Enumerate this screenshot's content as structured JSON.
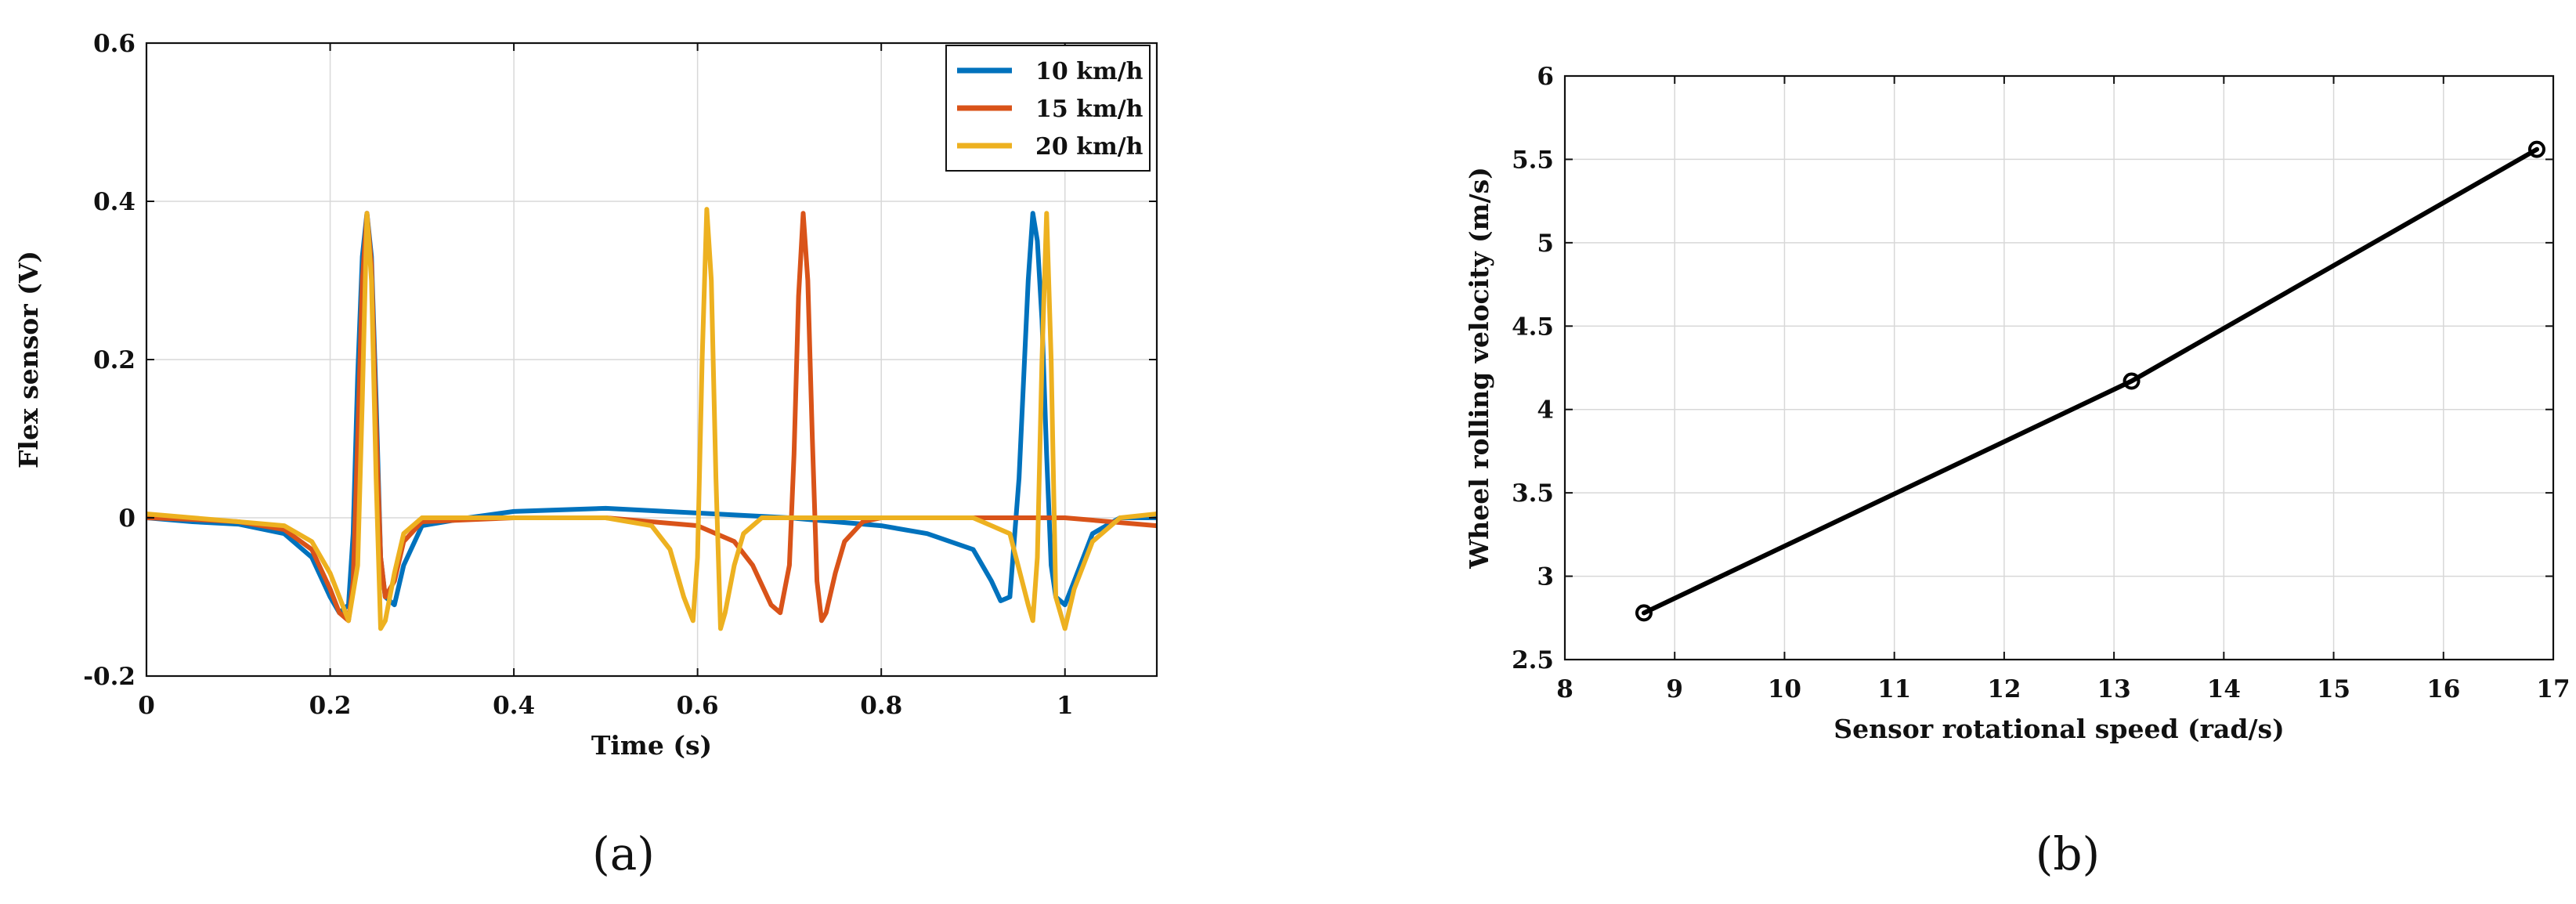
{
  "chart_data": [
    {
      "id": "a",
      "type": "line",
      "panel_label": "(a)",
      "xlabel": "Time (s)",
      "ylabel": "Flex sensor (V)",
      "xlim": [
        0,
        1.1
      ],
      "ylim": [
        -0.2,
        0.6
      ],
      "xticks": [
        0,
        0.2,
        0.4,
        0.6,
        0.8,
        1
      ],
      "xtick_labels": [
        "0",
        "0.2",
        "0.4",
        "0.6",
        "0.8",
        "1"
      ],
      "yticks": [
        -0.2,
        0,
        0.2,
        0.4,
        0.6
      ],
      "ytick_labels": [
        "-0.2",
        "0",
        "0.2",
        "0.4",
        "0.6"
      ],
      "grid": true,
      "legend_position": "top-right",
      "series": [
        {
          "name": "10 km/h",
          "color": "#0072BD",
          "x": [
            0,
            0.05,
            0.1,
            0.15,
            0.18,
            0.2,
            0.21,
            0.22,
            0.225,
            0.23,
            0.235,
            0.24,
            0.245,
            0.25,
            0.255,
            0.26,
            0.27,
            0.28,
            0.3,
            0.35,
            0.4,
            0.5,
            0.6,
            0.7,
            0.8,
            0.85,
            0.9,
            0.92,
            0.93,
            0.94,
            0.95,
            0.96,
            0.965,
            0.97,
            0.975,
            0.98,
            0.985,
            0.99,
            1.0,
            1.01,
            1.03,
            1.06,
            1.1
          ],
          "y": [
            0.0,
            -0.005,
            -0.008,
            -0.02,
            -0.05,
            -0.1,
            -0.12,
            -0.11,
            -0.02,
            0.18,
            0.33,
            0.385,
            0.33,
            0.15,
            -0.05,
            -0.1,
            -0.11,
            -0.06,
            -0.01,
            0.0,
            0.008,
            0.012,
            0.006,
            0.0,
            -0.01,
            -0.02,
            -0.04,
            -0.08,
            -0.105,
            -0.1,
            0.05,
            0.3,
            0.385,
            0.35,
            0.25,
            0.08,
            -0.06,
            -0.1,
            -0.11,
            -0.08,
            -0.02,
            0.0,
            0.0
          ]
        },
        {
          "name": "15 km/h",
          "color": "#D95319",
          "x": [
            0,
            0.05,
            0.1,
            0.15,
            0.18,
            0.2,
            0.21,
            0.22,
            0.225,
            0.23,
            0.235,
            0.24,
            0.245,
            0.25,
            0.255,
            0.26,
            0.27,
            0.28,
            0.3,
            0.4,
            0.5,
            0.6,
            0.64,
            0.66,
            0.68,
            0.69,
            0.7,
            0.705,
            0.71,
            0.715,
            0.72,
            0.725,
            0.73,
            0.735,
            0.74,
            0.75,
            0.76,
            0.78,
            0.8,
            0.9,
            1.0,
            1.1
          ],
          "y": [
            0.0,
            -0.002,
            -0.005,
            -0.015,
            -0.04,
            -0.09,
            -0.12,
            -0.13,
            -0.08,
            0.1,
            0.3,
            0.385,
            0.32,
            0.12,
            -0.05,
            -0.1,
            -0.08,
            -0.03,
            -0.005,
            0.0,
            0.0,
            -0.01,
            -0.03,
            -0.06,
            -0.11,
            -0.12,
            -0.06,
            0.08,
            0.28,
            0.385,
            0.3,
            0.1,
            -0.08,
            -0.13,
            -0.12,
            -0.07,
            -0.03,
            -0.005,
            0.0,
            0.0,
            0.0,
            -0.01
          ]
        },
        {
          "name": "20 km/h",
          "color": "#EDB120",
          "x": [
            0,
            0.05,
            0.1,
            0.15,
            0.18,
            0.2,
            0.21,
            0.22,
            0.23,
            0.235,
            0.24,
            0.245,
            0.25,
            0.255,
            0.26,
            0.27,
            0.28,
            0.3,
            0.4,
            0.5,
            0.55,
            0.57,
            0.585,
            0.595,
            0.6,
            0.605,
            0.61,
            0.615,
            0.62,
            0.625,
            0.63,
            0.64,
            0.65,
            0.67,
            0.7,
            0.8,
            0.9,
            0.94,
            0.96,
            0.965,
            0.97,
            0.975,
            0.98,
            0.985,
            0.99,
            1.0,
            1.01,
            1.03,
            1.06,
            1.1
          ],
          "y": [
            0.005,
            0.0,
            -0.005,
            -0.01,
            -0.03,
            -0.07,
            -0.1,
            -0.13,
            -0.06,
            0.15,
            0.385,
            0.3,
            0.05,
            -0.14,
            -0.13,
            -0.07,
            -0.02,
            0.0,
            0.0,
            0.0,
            -0.01,
            -0.04,
            -0.1,
            -0.13,
            -0.05,
            0.2,
            0.39,
            0.3,
            0.05,
            -0.14,
            -0.12,
            -0.06,
            -0.02,
            0.0,
            0.0,
            0.0,
            0.0,
            -0.02,
            -0.11,
            -0.13,
            -0.05,
            0.2,
            0.385,
            0.2,
            -0.1,
            -0.14,
            -0.09,
            -0.03,
            0.0,
            0.005
          ]
        }
      ]
    },
    {
      "id": "b",
      "type": "line",
      "panel_label": "(b)",
      "xlabel": "Sensor rotational speed (rad/s)",
      "ylabel": "Wheel rolling velocity (m/s)",
      "xlim": [
        8,
        17
      ],
      "ylim": [
        2.5,
        6
      ],
      "xticks": [
        8,
        9,
        10,
        11,
        12,
        13,
        14,
        15,
        16,
        17
      ],
      "xtick_labels": [
        "8",
        "9",
        "10",
        "11",
        "12",
        "13",
        "14",
        "15",
        "16",
        "17"
      ],
      "yticks": [
        2.5,
        3,
        3.5,
        4,
        4.5,
        5,
        5.5,
        6
      ],
      "ytick_labels": [
        "2.5",
        "3",
        "3.5",
        "4",
        "4.5",
        "5",
        "5.5",
        "6"
      ],
      "grid": true,
      "series": [
        {
          "name": "velocity",
          "color": "#000000",
          "marker": "o",
          "x": [
            8.72,
            13.16,
            16.85
          ],
          "y": [
            2.78,
            4.17,
            5.56
          ]
        }
      ]
    }
  ]
}
